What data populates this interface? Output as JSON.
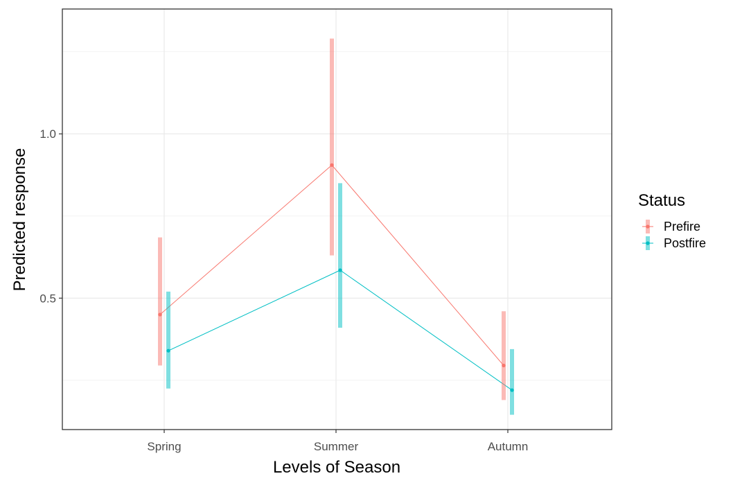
{
  "chart_data": {
    "type": "line",
    "xlabel": "Levels of Season",
    "ylabel": "Predicted response",
    "categories": [
      "Spring",
      "Summer",
      "Autumn"
    ],
    "ylim": [
      0.1,
      1.38
    ],
    "yticks": [
      0.5,
      1.0
    ],
    "ytick_labels": [
      "0.5",
      "1.0"
    ],
    "grid": true,
    "legend": {
      "title": "Status",
      "placement": "right"
    },
    "series": [
      {
        "name": "Prefire",
        "color": "#F8766D",
        "values": [
          0.45,
          0.905,
          0.295
        ],
        "lower": [
          0.295,
          0.63,
          0.19
        ],
        "upper": [
          0.685,
          1.29,
          0.46
        ]
      },
      {
        "name": "Postfire",
        "color": "#00BFC4",
        "values": [
          0.34,
          0.585,
          0.22
        ],
        "lower": [
          0.225,
          0.41,
          0.145
        ],
        "upper": [
          0.52,
          0.85,
          0.345
        ]
      }
    ]
  }
}
